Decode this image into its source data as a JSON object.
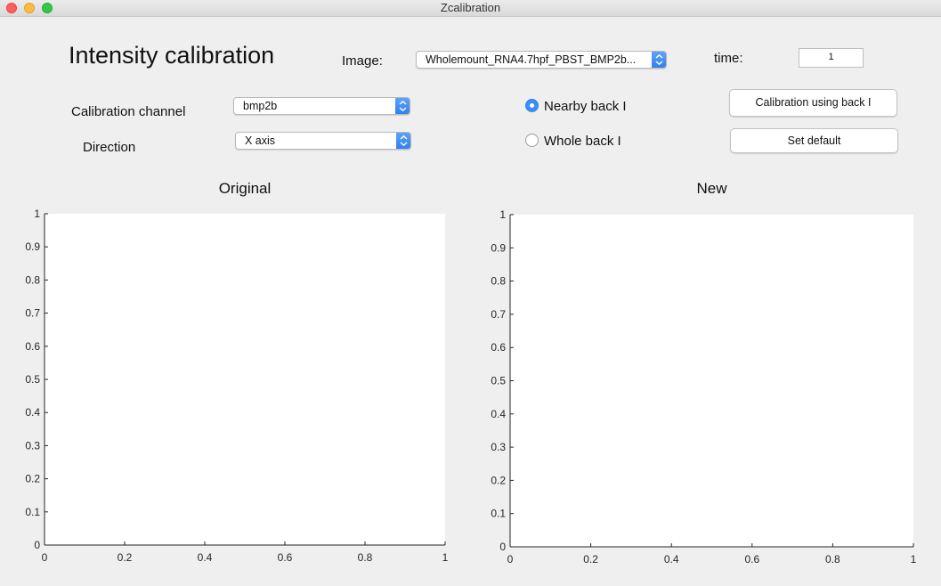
{
  "window": {
    "title": "Zcalibration"
  },
  "header": {
    "title": "Intensity calibration"
  },
  "image": {
    "label": "Image:",
    "value": "Wholemount_RNA4.7hpf_PBST_BMP2b..."
  },
  "time": {
    "label": "time:",
    "value": "1"
  },
  "calibration_channel": {
    "label": "Calibration channel",
    "value": "bmp2b"
  },
  "direction": {
    "label": "Direction",
    "value": "X axis"
  },
  "radios": {
    "nearby": {
      "label": "Nearby back I",
      "selected": true
    },
    "whole": {
      "label": "Whole back I",
      "selected": false
    }
  },
  "buttons": {
    "calibrate": "Calibration using back I",
    "set_default": "Set default"
  },
  "plots": {
    "original": {
      "title": "Original"
    },
    "new": {
      "title": "New"
    }
  },
  "chart_data": [
    {
      "type": "line",
      "title": "Original",
      "xlabel": "",
      "ylabel": "",
      "xlim": [
        0,
        1
      ],
      "ylim": [
        0,
        1
      ],
      "xticks": [
        "0",
        "0.2",
        "0.4",
        "0.6",
        "0.8",
        "1"
      ],
      "yticks": [
        "0",
        "0.1",
        "0.2",
        "0.3",
        "0.4",
        "0.5",
        "0.6",
        "0.7",
        "0.8",
        "0.9",
        "1"
      ],
      "series": []
    },
    {
      "type": "line",
      "title": "New",
      "xlabel": "",
      "ylabel": "",
      "xlim": [
        0,
        1
      ],
      "ylim": [
        0,
        1
      ],
      "xticks": [
        "0",
        "0.2",
        "0.4",
        "0.6",
        "0.8",
        "1"
      ],
      "yticks": [
        "0",
        "0.1",
        "0.2",
        "0.3",
        "0.4",
        "0.5",
        "0.6",
        "0.7",
        "0.8",
        "0.9",
        "1"
      ],
      "series": []
    }
  ]
}
